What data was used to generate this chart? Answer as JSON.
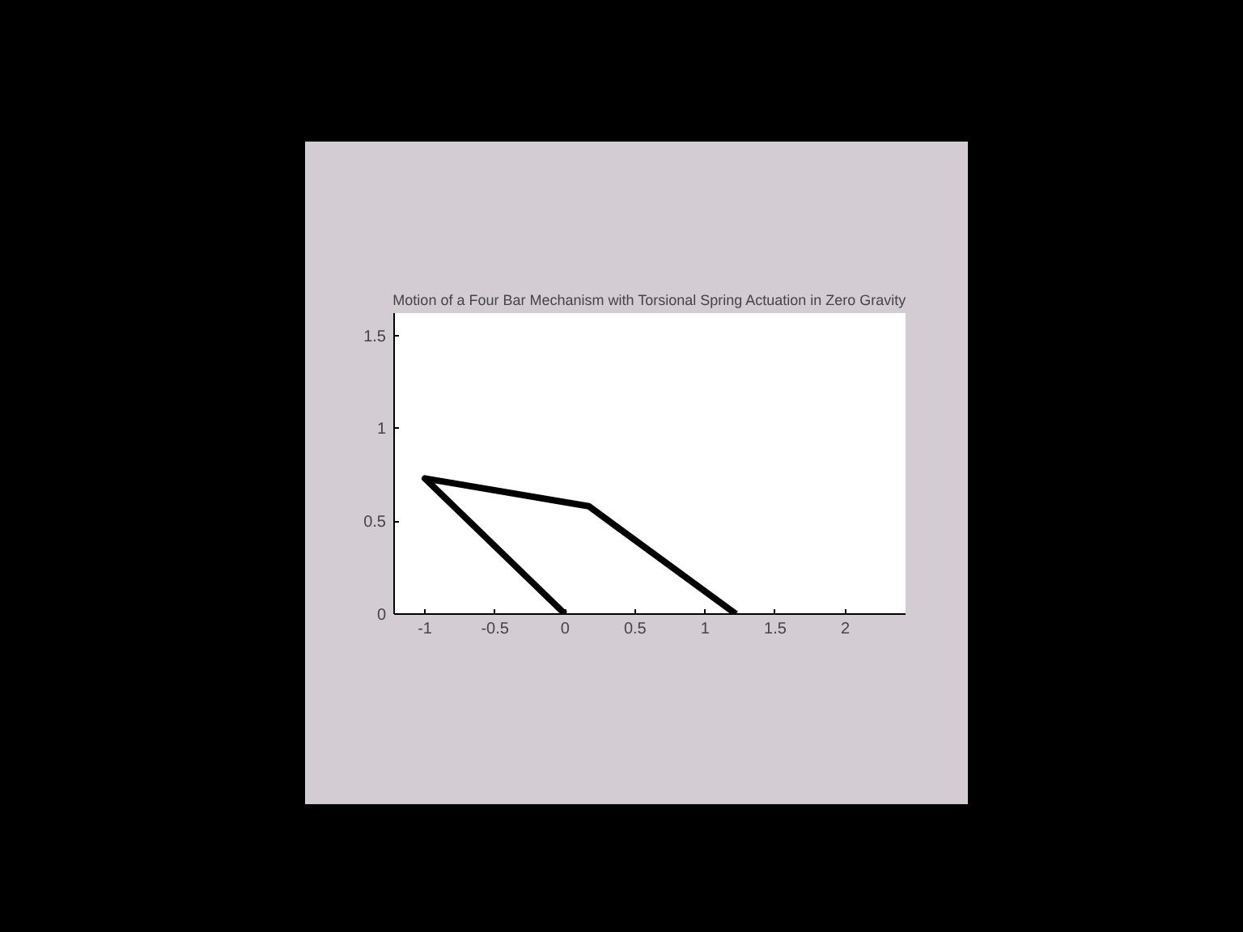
{
  "chart_data": {
    "type": "line",
    "title": "Motion of a Four Bar Mechanism with Torsional Spring Actuation in Zero Gravity",
    "x": [
      0,
      -1,
      0.17,
      1.22
    ],
    "series": [
      {
        "color": "#000000",
        "values": [
          0,
          0.73,
          0.58,
          0
        ]
      }
    ],
    "xlim": [
      -1.22,
      2.43
    ],
    "ylim": [
      0,
      1.62
    ],
    "xticks": [
      -1,
      -0.5,
      0,
      0.5,
      1,
      1.5,
      2
    ],
    "yticks": [
      0,
      0.5,
      1,
      1.5
    ],
    "grid": false,
    "marker": "none",
    "line_style": "solid"
  }
}
